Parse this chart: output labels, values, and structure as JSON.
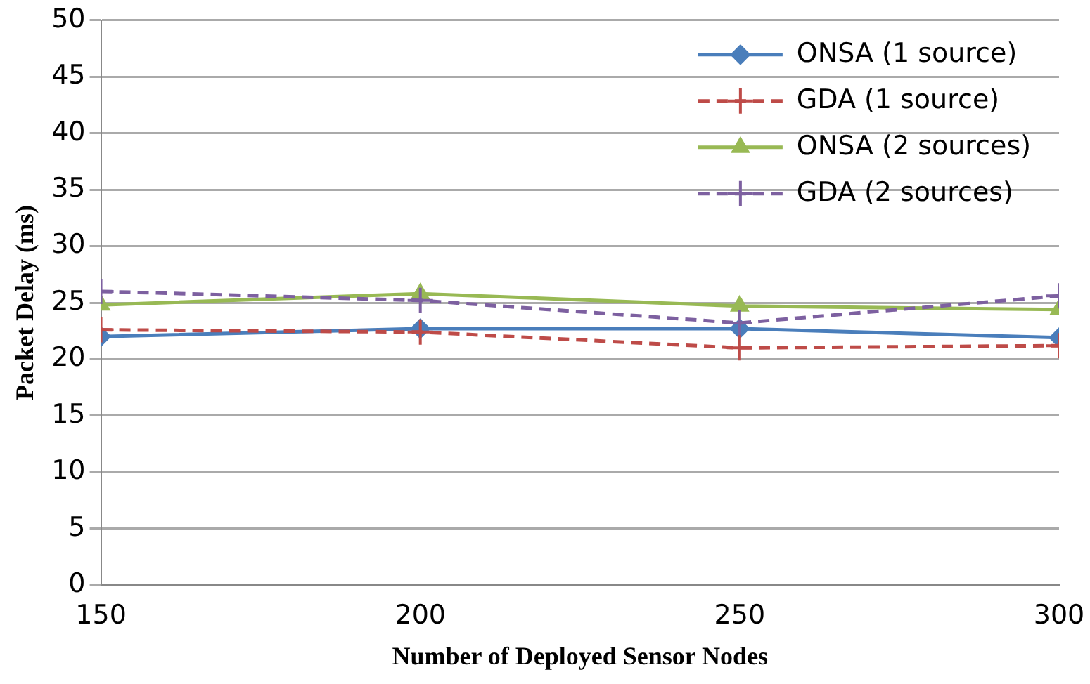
{
  "chart_data": {
    "type": "line",
    "xlabel": "Number of Deployed Sensor Nodes",
    "ylabel": "Packet Delay (ms)",
    "x": [
      150,
      200,
      250,
      300
    ],
    "series": [
      {
        "name": "ONSA (1 source)",
        "color": "#4a7ebb",
        "marker": "diamond",
        "line_style": "solid",
        "values": [
          22.0,
          22.7,
          22.7,
          21.9
        ]
      },
      {
        "name": "GDA (1 source)",
        "color": "#be4b48",
        "marker": "cross",
        "line_style": "dashed",
        "values": [
          22.6,
          22.4,
          21.0,
          21.2
        ]
      },
      {
        "name": "ONSA (2 sources)",
        "color": "#98b954",
        "marker": "triangle",
        "line_style": "solid",
        "values": [
          24.8,
          25.8,
          24.7,
          24.4
        ]
      },
      {
        "name": "GDA (2 sources)",
        "color": "#7d60a0",
        "marker": "cross",
        "line_style": "dashed",
        "values": [
          26.0,
          25.2,
          23.2,
          25.6
        ]
      }
    ],
    "xlim": [
      150,
      300
    ],
    "xticks": [
      150,
      200,
      250,
      300
    ],
    "ylim": [
      0,
      50
    ],
    "yticks": [
      0,
      5,
      10,
      15,
      20,
      25,
      30,
      35,
      40,
      45,
      50
    ],
    "grid": "y",
    "legend": "top right"
  }
}
